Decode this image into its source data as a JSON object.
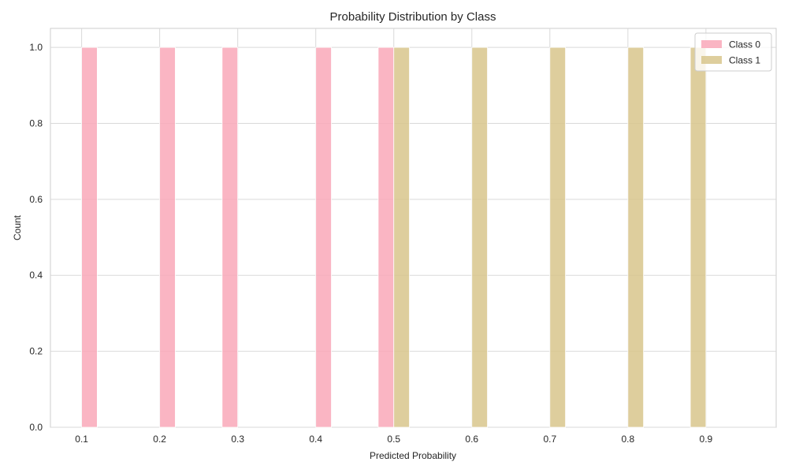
{
  "chart_data": {
    "type": "bar",
    "title": "Probability Distribution by Class",
    "xlabel": "Predicted Probability",
    "ylabel": "Count",
    "xlim": [
      0.06,
      0.99
    ],
    "ylim": [
      0,
      1.05
    ],
    "xticks": [
      0.1,
      0.2,
      0.3,
      0.4,
      0.5,
      0.6,
      0.7,
      0.8,
      0.9
    ],
    "xtick_labels": [
      "0.1",
      "0.2",
      "0.3",
      "0.4",
      "0.5",
      "0.6",
      "0.7",
      "0.8",
      "0.9"
    ],
    "yticks": [
      0.0,
      0.2,
      0.4,
      0.6,
      0.8,
      1.0
    ],
    "ytick_labels": [
      "0.0",
      "0.2",
      "0.4",
      "0.6",
      "0.8",
      "1.0"
    ],
    "grid": true,
    "legend_position": "top-right",
    "bin_width": 0.02,
    "series": [
      {
        "name": "Class 0",
        "color": "#f9a8b8",
        "bins": [
          {
            "x0": 0.1,
            "x1": 0.12,
            "count": 1
          },
          {
            "x0": 0.2,
            "x1": 0.22,
            "count": 1
          },
          {
            "x0": 0.28,
            "x1": 0.3,
            "count": 1
          },
          {
            "x0": 0.4,
            "x1": 0.42,
            "count": 1
          },
          {
            "x0": 0.48,
            "x1": 0.5,
            "count": 1
          }
        ]
      },
      {
        "name": "Class 1",
        "color": "#d8c58c",
        "bins": [
          {
            "x0": 0.5,
            "x1": 0.52,
            "count": 1
          },
          {
            "x0": 0.6,
            "x1": 0.62,
            "count": 1
          },
          {
            "x0": 0.7,
            "x1": 0.72,
            "count": 1
          },
          {
            "x0": 0.8,
            "x1": 0.82,
            "count": 1
          },
          {
            "x0": 0.88,
            "x1": 0.9,
            "count": 1
          }
        ]
      }
    ]
  }
}
